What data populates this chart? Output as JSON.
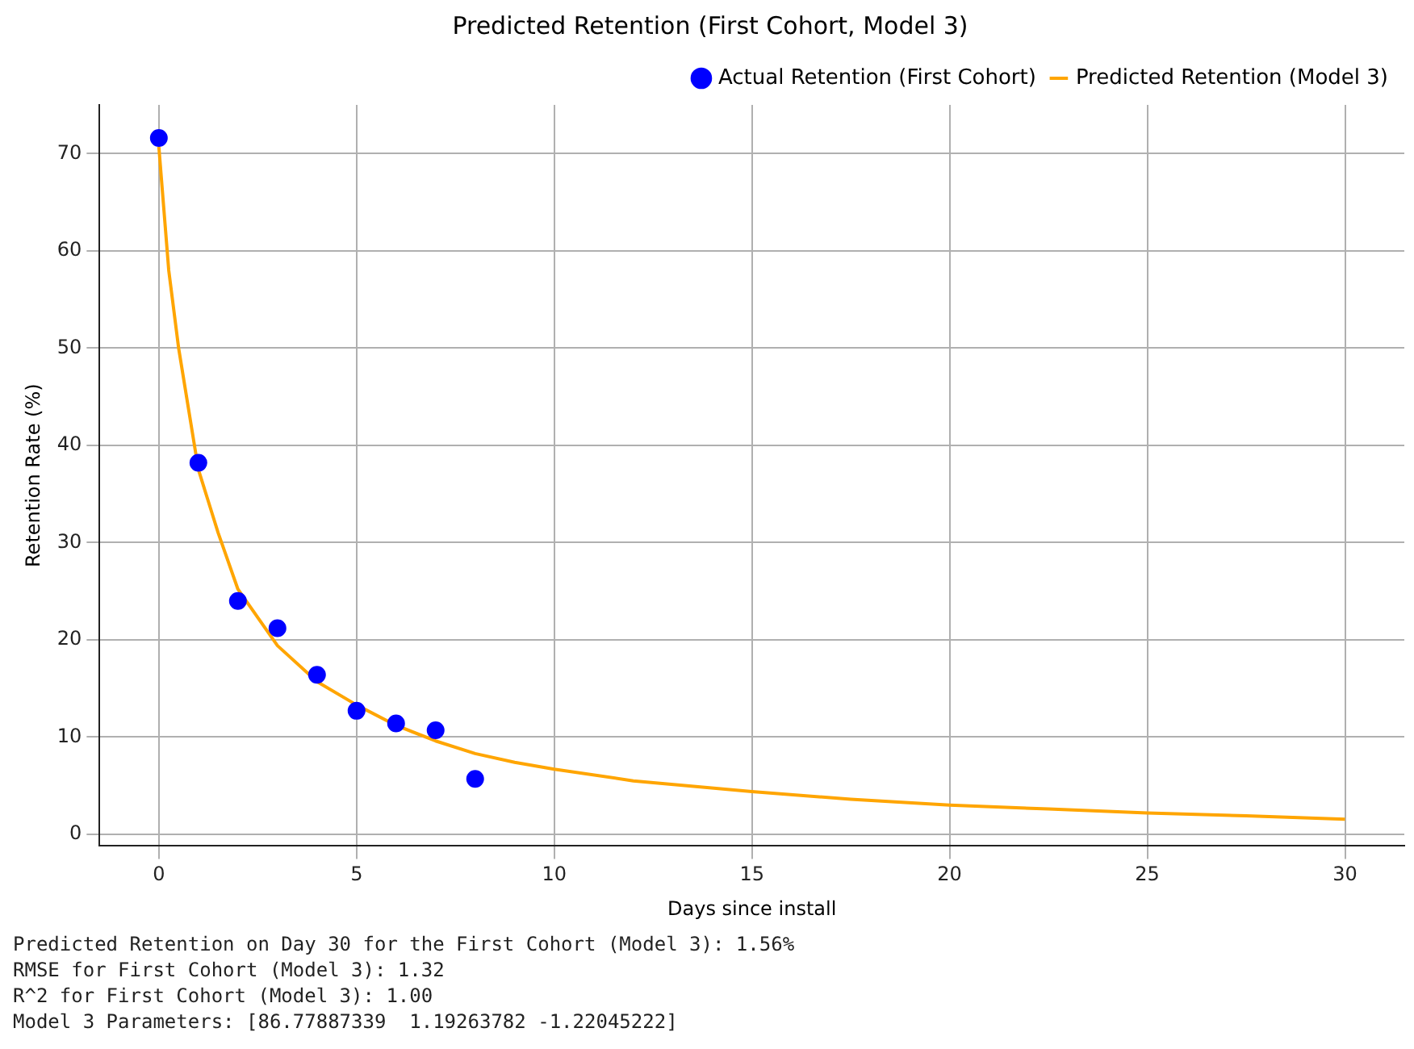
{
  "chart_data": {
    "type": "scatter",
    "title": "Predicted Retention (First Cohort, Model 3)",
    "xlabel": "Days since install",
    "ylabel": "Retention Rate (%)",
    "xlim": [
      -1.5,
      31.5
    ],
    "xticks": [
      0,
      5,
      10,
      15,
      20,
      25,
      30
    ],
    "ylim": [
      -1.2,
      75
    ],
    "yticks": [
      0,
      10,
      20,
      30,
      40,
      50,
      60,
      70
    ],
    "grid": true,
    "legend": "top right",
    "series": [
      {
        "name": "Actual Retention (First Cohort)",
        "color": "#0000ff",
        "marker": "circle",
        "x": [
          0,
          1,
          2,
          3,
          4,
          5,
          6,
          7,
          8
        ],
        "values": [
          71.6,
          38.2,
          24.0,
          21.2,
          16.4,
          12.7,
          11.4,
          10.7,
          5.7
        ]
      },
      {
        "type": "line",
        "name": "Predicted Retention (Model 3)",
        "color": "#ffa500",
        "marker": "none",
        "x": [
          0,
          0.25,
          0.5,
          1,
          1.5,
          2,
          3,
          4,
          5,
          6,
          7,
          8,
          9,
          10,
          12,
          15,
          17.5,
          20,
          22.5,
          25,
          27.5,
          30
        ],
        "values": [
          70.7,
          58,
          50,
          37.5,
          31,
          25.2,
          19.4,
          15.7,
          13.3,
          11.2,
          9.6,
          8.3,
          7.4,
          6.7,
          5.5,
          4.4,
          3.6,
          3.0,
          2.6,
          2.2,
          1.9,
          1.56
        ]
      }
    ],
    "annotations": [
      "Predicted Retention on Day 30 for the First Cohort (Model 3): 1.56%",
      "RMSE for First Cohort (Model 3): 1.32",
      "R^2 for First Cohort (Model 3): 1.00",
      "Model 3 Parameters: [86.77887339  1.19263782 -1.22045222]"
    ]
  }
}
